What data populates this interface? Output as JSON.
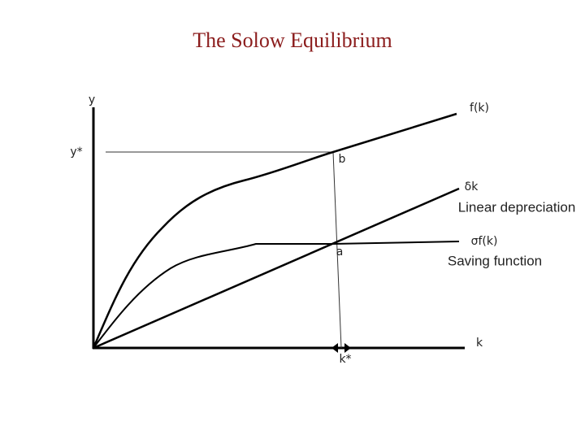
{
  "title": "The Solow Equilibrium",
  "axes": {
    "y_label": "y",
    "x_label": "k"
  },
  "levels": {
    "y_star": "y*",
    "k_star": "k*"
  },
  "points": {
    "b": "b",
    "a": "a"
  },
  "curves": [
    {
      "symbol": "f(k)"
    },
    {
      "symbol": "δk",
      "name": "Linear depreciation"
    },
    {
      "symbol": "σf(k)",
      "name": "Saving function"
    }
  ]
}
